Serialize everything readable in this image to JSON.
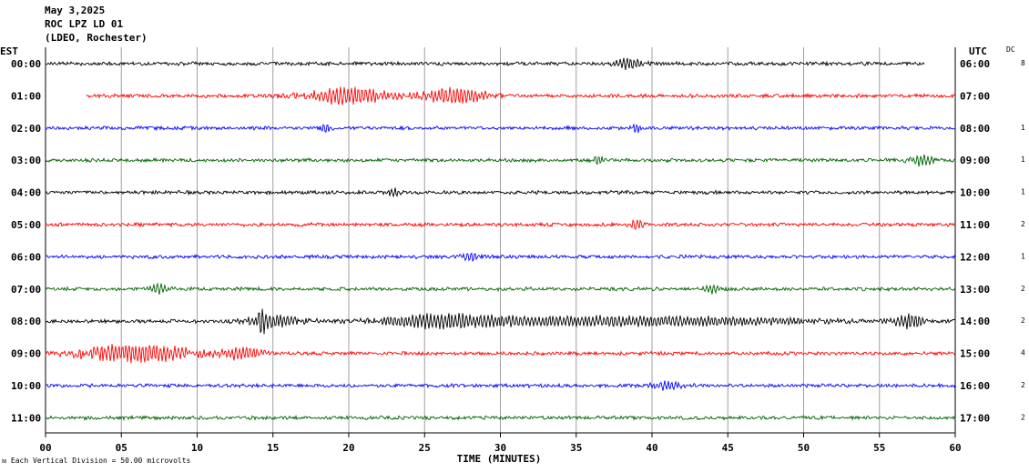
{
  "header": {
    "date": "May 3,2025",
    "station": "ROC LPZ LD 01",
    "location": "(LDEO, Rochester)"
  },
  "chart_data": {
    "type": "line",
    "subtype": "helicorder",
    "left_timezone": "EST",
    "right_timezone": "UTC",
    "dc_label": "DC",
    "xlabel": "TIME (MINUTES)",
    "xlim": [
      0,
      60
    ],
    "x_ticks": [
      "00",
      "05",
      "10",
      "15",
      "20",
      "25",
      "30",
      "35",
      "40",
      "45",
      "50",
      "55",
      "60"
    ],
    "scale_note": "Each Vertical Division =   50.00 microvolts",
    "grid": true,
    "rows": [
      {
        "left": "00:00",
        "right": "06:00",
        "color": "#000000",
        "dc": "8",
        "start": 0,
        "end": 58,
        "events": [
          [
            38.5,
            1.6,
            2
          ]
        ]
      },
      {
        "left": "01:00",
        "right": "07:00",
        "color": "#ff0000",
        "dc": "",
        "start": 2.7,
        "end": 60,
        "events": [
          [
            20,
            4,
            3.2
          ],
          [
            27,
            3,
            3
          ]
        ]
      },
      {
        "left": "02:00",
        "right": "08:00",
        "color": "#0000ff",
        "dc": "1",
        "start": 0,
        "end": 60,
        "events": [
          [
            18.5,
            0.5,
            1.6
          ],
          [
            39,
            0.5,
            1.5
          ]
        ]
      },
      {
        "left": "03:00",
        "right": "09:00",
        "color": "#006400",
        "dc": "1",
        "start": 0,
        "end": 60,
        "events": [
          [
            36.5,
            0.6,
            1.5
          ],
          [
            57.8,
            1.2,
            1.8
          ]
        ]
      },
      {
        "left": "04:00",
        "right": "10:00",
        "color": "#000000",
        "dc": "1",
        "start": 0,
        "end": 60,
        "events": [
          [
            23,
            0.5,
            1.5
          ]
        ]
      },
      {
        "left": "05:00",
        "right": "11:00",
        "color": "#ff0000",
        "dc": "2",
        "start": 0,
        "end": 60,
        "events": [
          [
            39,
            0.8,
            1.6
          ]
        ]
      },
      {
        "left": "06:00",
        "right": "12:00",
        "color": "#0000ff",
        "dc": "1",
        "start": 0,
        "end": 60,
        "events": [
          [
            28,
            1,
            1.5
          ]
        ]
      },
      {
        "left": "07:00",
        "right": "13:00",
        "color": "#006400",
        "dc": "2",
        "start": 0,
        "end": 60,
        "events": [
          [
            7.5,
            1.2,
            1.7
          ],
          [
            44,
            1,
            1.6
          ]
        ]
      },
      {
        "left": "08:00",
        "right": "14:00",
        "color": "#000000",
        "dc": "2",
        "start": 0,
        "end": 60,
        "events": [
          [
            14.3,
            0.3,
            6
          ],
          [
            15,
            2.5,
            2.2
          ],
          [
            26,
            5,
            2
          ],
          [
            38,
            20,
            1.7
          ],
          [
            57,
            1.6,
            2.4
          ]
        ]
      },
      {
        "left": "09:00",
        "right": "15:00",
        "color": "#ff0000",
        "dc": "4",
        "start": 0,
        "end": 60,
        "events": [
          [
            6,
            6,
            3.4
          ],
          [
            13,
            2,
            2
          ]
        ]
      },
      {
        "left": "10:00",
        "right": "16:00",
        "color": "#0000ff",
        "dc": "2",
        "start": 0,
        "end": 60,
        "events": [
          [
            41,
            1.5,
            1.5
          ]
        ]
      },
      {
        "left": "11:00",
        "right": "17:00",
        "color": "#006400",
        "dc": "2",
        "start": 0,
        "end": 60,
        "events": []
      }
    ]
  }
}
